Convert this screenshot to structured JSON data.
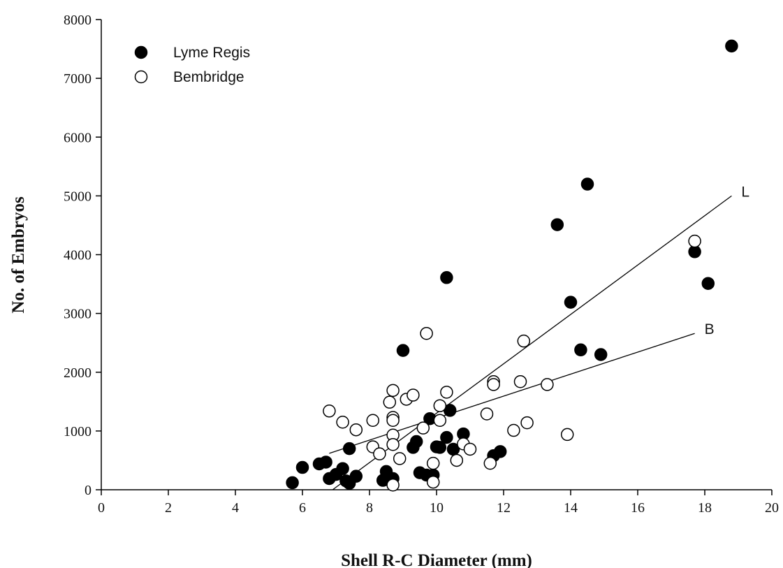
{
  "chart_data": {
    "type": "scatter",
    "xlabel": "Shell R-C Diameter (mm)",
    "ylabel": "No. of Embryos",
    "xlim": [
      0,
      20
    ],
    "ylim": [
      0,
      8000
    ],
    "xticks": [
      "0",
      "2",
      "4",
      "6",
      "8",
      "10",
      "12",
      "14",
      "16",
      "18",
      "20"
    ],
    "yticks": [
      "0",
      "1000",
      "2000",
      "3000",
      "4000",
      "5000",
      "6000",
      "7000",
      "8000"
    ],
    "legend": "top-left",
    "grid": false,
    "series": [
      {
        "name": "Lyme Regis",
        "marker": "filled-circle",
        "color": "#000000",
        "points": [
          [
            5.7,
            120
          ],
          [
            6.0,
            380
          ],
          [
            6.5,
            440
          ],
          [
            6.7,
            470
          ],
          [
            6.8,
            190
          ],
          [
            7.0,
            260
          ],
          [
            7.2,
            360
          ],
          [
            7.3,
            150
          ],
          [
            7.4,
            700
          ],
          [
            7.4,
            110
          ],
          [
            7.6,
            230
          ],
          [
            8.4,
            160
          ],
          [
            8.5,
            310
          ],
          [
            8.7,
            190
          ],
          [
            9.0,
            2370
          ],
          [
            9.3,
            720
          ],
          [
            9.4,
            820
          ],
          [
            9.5,
            290
          ],
          [
            9.7,
            250
          ],
          [
            9.8,
            1210
          ],
          [
            9.9,
            250
          ],
          [
            10.0,
            730
          ],
          [
            10.1,
            720
          ],
          [
            10.3,
            3610
          ],
          [
            10.3,
            890
          ],
          [
            10.4,
            1350
          ],
          [
            10.5,
            690
          ],
          [
            10.8,
            950
          ],
          [
            11.7,
            580
          ],
          [
            11.9,
            650
          ],
          [
            13.6,
            4510
          ],
          [
            14.0,
            3190
          ],
          [
            14.3,
            2380
          ],
          [
            14.5,
            5200
          ],
          [
            14.9,
            2300
          ],
          [
            17.7,
            4050
          ],
          [
            18.1,
            3510
          ],
          [
            18.8,
            7550
          ]
        ]
      },
      {
        "name": "Bembridge",
        "marker": "open-circle",
        "color": "#000000",
        "points": [
          [
            6.8,
            1340
          ],
          [
            7.2,
            1150
          ],
          [
            7.6,
            1020
          ],
          [
            8.1,
            1180
          ],
          [
            8.1,
            730
          ],
          [
            8.3,
            610
          ],
          [
            8.6,
            1490
          ],
          [
            8.7,
            1690
          ],
          [
            8.7,
            1230
          ],
          [
            8.7,
            1180
          ],
          [
            8.7,
            930
          ],
          [
            8.7,
            770
          ],
          [
            8.7,
            80
          ],
          [
            8.9,
            530
          ],
          [
            9.1,
            1540
          ],
          [
            9.3,
            1610
          ],
          [
            9.6,
            1050
          ],
          [
            9.7,
            2660
          ],
          [
            9.9,
            450
          ],
          [
            9.9,
            130
          ],
          [
            10.1,
            1430
          ],
          [
            10.1,
            1180
          ],
          [
            10.3,
            1660
          ],
          [
            10.6,
            500
          ],
          [
            10.8,
            780
          ],
          [
            11.0,
            690
          ],
          [
            11.5,
            1290
          ],
          [
            11.6,
            450
          ],
          [
            11.7,
            1840
          ],
          [
            11.7,
            1790
          ],
          [
            12.3,
            1010
          ],
          [
            12.5,
            1840
          ],
          [
            12.6,
            2530
          ],
          [
            12.7,
            1140
          ],
          [
            13.3,
            1790
          ],
          [
            13.9,
            940
          ],
          [
            17.7,
            4230
          ]
        ]
      }
    ],
    "fit_lines": [
      {
        "label": "L",
        "x": [
          6.9,
          18.8
        ],
        "y": [
          0,
          5000
        ]
      },
      {
        "label": "B",
        "x": [
          6.8,
          17.7
        ],
        "y": [
          620,
          2660
        ]
      }
    ]
  }
}
